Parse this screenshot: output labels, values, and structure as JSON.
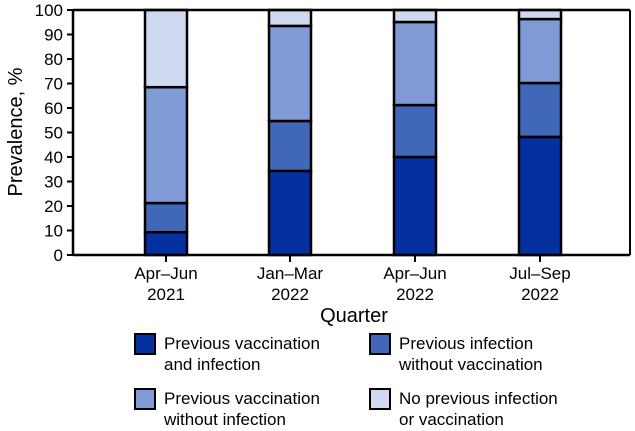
{
  "chart_data": {
    "type": "bar",
    "stacked": true,
    "xlabel": "Quarter",
    "ylabel": "Prevalence, %",
    "ylim": [
      0,
      100
    ],
    "yticks": [
      0,
      10,
      20,
      30,
      40,
      50,
      60,
      70,
      80,
      90,
      100
    ],
    "categories": [
      [
        "Apr–Jun",
        "2021"
      ],
      [
        "Jan–Mar",
        "2022"
      ],
      [
        "Apr–Jun",
        "2022"
      ],
      [
        "Jul–Sep",
        "2022"
      ]
    ],
    "legend_position": "bottom",
    "series": [
      {
        "name": [
          "Previous vaccination",
          "and infection"
        ],
        "color": "#0530a0",
        "values": [
          9.3,
          34.3,
          40.0,
          48.2
        ]
      },
      {
        "name": [
          "Previous infection",
          "without vaccination"
        ],
        "color": "#4168b8",
        "values": [
          11.9,
          20.4,
          21.2,
          22.0
        ]
      },
      {
        "name": [
          "Previous vaccination",
          "without infection"
        ],
        "color": "#7f9ad4",
        "values": [
          47.3,
          38.8,
          33.9,
          26.1
        ]
      },
      {
        "name": [
          "No previous infection",
          "or vaccination"
        ],
        "color": "#cfd9ef",
        "values": [
          31.5,
          6.5,
          4.9,
          3.7
        ]
      }
    ]
  }
}
